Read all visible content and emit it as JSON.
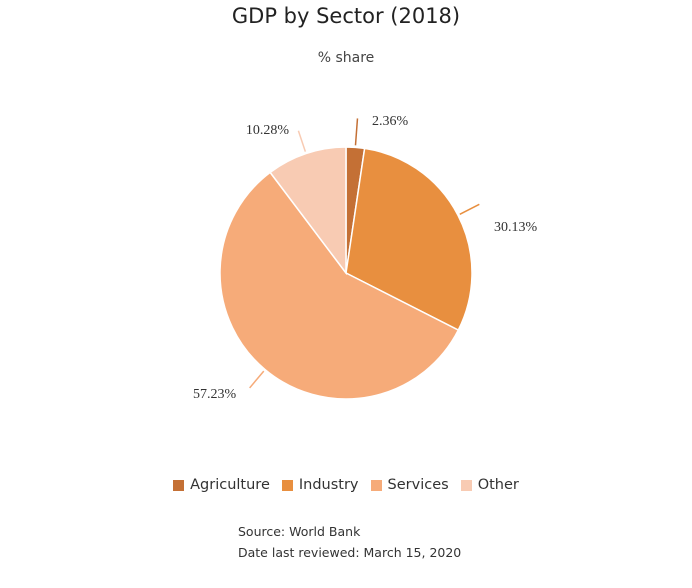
{
  "chart_data": {
    "type": "pie",
    "title": "GDP by Sector (2018)",
    "subtitle": "% share",
    "categories": [
      "Agriculture",
      "Industry",
      "Services",
      "Other"
    ],
    "values": [
      2.36,
      30.13,
      57.23,
      10.28
    ],
    "data_labels": [
      "2.36%",
      "30.13%",
      "57.23%",
      "10.28%"
    ],
    "colors": [
      "#c47035",
      "#e88f3f",
      "#f6ab79",
      "#f8cbb3"
    ],
    "legend_position": "bottom",
    "start_angle_deg": 0,
    "direction": "clockwise"
  },
  "footer": {
    "source": "Source: World Bank",
    "reviewed": "Date last reviewed: March 15, 2020"
  }
}
